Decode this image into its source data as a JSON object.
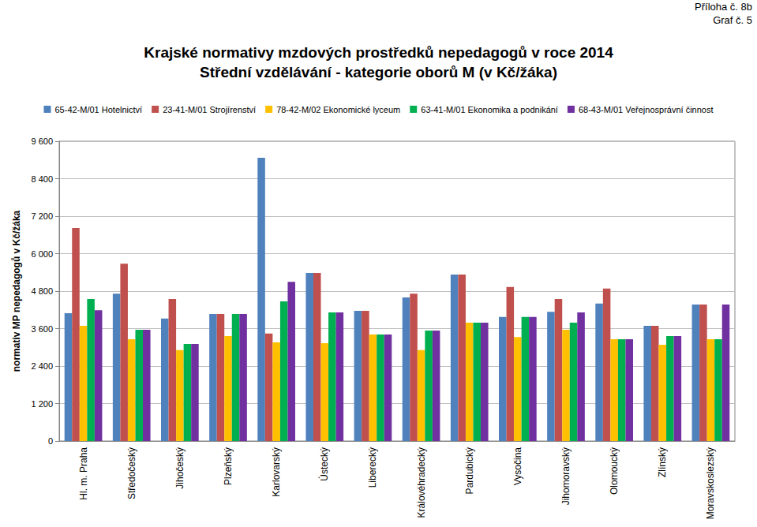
{
  "chart_data": {
    "type": "bar",
    "title": "Krajské normativy mzdových prostředků nepedagogů v roce 2014",
    "subtitle": "Střední vzdělávání - kategorie oborů M (v Kč/žáka)",
    "annotations": [
      "Příloha č. 8b",
      "Graf č. 5"
    ],
    "y_label": "normativ MP nepedagogů v Kč/žáka",
    "categories": [
      "Hl. m. Praha",
      "Středočeský",
      "Jihočeský",
      "Plzeňský",
      "Karlovarský",
      "Ústecký",
      "Liberecký",
      "Královéhradecký",
      "Pardubický",
      "Vysočina",
      "Jihomoravský",
      "Olomoucký",
      "Zlínský",
      "Moravskoslezský"
    ],
    "series": [
      {
        "name": "65-42-M/01 Hotelnictví",
        "color": "#4F81BD",
        "values": [
          4090,
          4720,
          3920,
          4070,
          9070,
          5380,
          4170,
          4600,
          5330,
          3970,
          4140,
          4400,
          3690,
          4370
        ]
      },
      {
        "name": "23-41-M/01 Strojírenství",
        "color": "#C0504D",
        "values": [
          6820,
          5680,
          4550,
          4070,
          3440,
          5380,
          4170,
          4720,
          5330,
          4930,
          4550,
          4880,
          3690,
          4370
        ]
      },
      {
        "name": "78-42-M/02 Ekonomické lyceum",
        "color": "#FFC000",
        "values": [
          3690,
          3260,
          2910,
          3360,
          3160,
          3130,
          3410,
          2910,
          3790,
          3330,
          3560,
          3260,
          3080,
          3260
        ]
      },
      {
        "name": "63-41-M/01 Ekonomika a podnikání",
        "color": "#00B050",
        "values": [
          4550,
          3560,
          3110,
          4070,
          4470,
          4120,
          3410,
          3540,
          3790,
          3970,
          3790,
          3260,
          3360,
          3260
        ]
      },
      {
        "name": "68-43-M/01 Veřejnosprávní činnost",
        "color": "#7030A0",
        "values": [
          4190,
          3560,
          3110,
          4070,
          5100,
          4120,
          3410,
          3540,
          3790,
          3970,
          4120,
          3260,
          3360,
          4370
        ]
      }
    ],
    "ylim": [
      0,
      9600
    ],
    "yticks": [
      0,
      {
        "value": 1200,
        "label": "1 200"
      },
      {
        "value": 2400,
        "label": "2 400"
      },
      {
        "value": 3600,
        "label": "3 600"
      },
      {
        "value": 4800,
        "label": "4 800"
      },
      {
        "value": 6000,
        "label": "6 000"
      },
      {
        "value": 7200,
        "label": "7 200"
      },
      {
        "value": 8400,
        "label": "8 400"
      },
      {
        "value": 9600,
        "label": "9 600"
      }
    ],
    "grid": true,
    "legend": "top"
  }
}
